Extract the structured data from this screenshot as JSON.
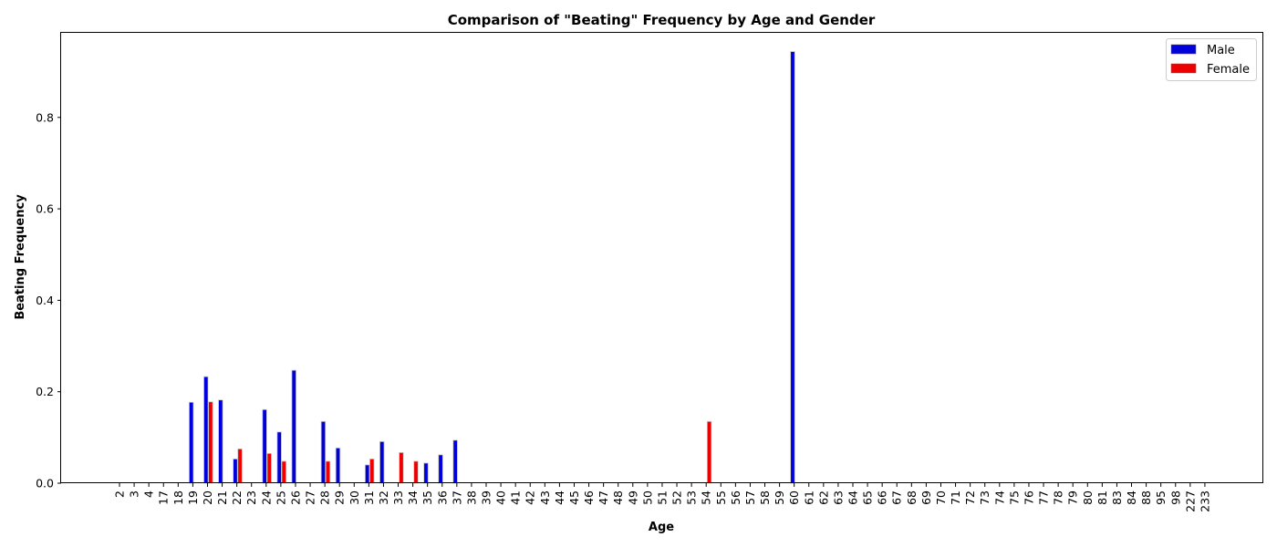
{
  "chart_data": {
    "type": "bar",
    "title": "Comparison of \"Beating\" Frequency by Age and Gender",
    "xlabel": "Age",
    "ylabel": "Beating Frequency",
    "ylim": [
      0,
      0.985
    ],
    "yticks": [
      "0.0",
      "0.2",
      "0.4",
      "0.6",
      "0.8"
    ],
    "grid": false,
    "legend_position": "top-right",
    "categories": [
      "2",
      "3",
      "4",
      "17",
      "18",
      "19",
      "20",
      "21",
      "22",
      "23",
      "24",
      "25",
      "26",
      "27",
      "28",
      "29",
      "30",
      "31",
      "32",
      "33",
      "34",
      "35",
      "36",
      "37",
      "38",
      "39",
      "40",
      "41",
      "42",
      "43",
      "44",
      "45",
      "46",
      "47",
      "48",
      "49",
      "50",
      "51",
      "52",
      "53",
      "54",
      "55",
      "56",
      "57",
      "58",
      "59",
      "60",
      "61",
      "62",
      "63",
      "64",
      "65",
      "66",
      "67",
      "68",
      "69",
      "70",
      "71",
      "72",
      "73",
      "74",
      "75",
      "76",
      "77",
      "78",
      "79",
      "80",
      "81",
      "83",
      "84",
      "88",
      "95",
      "98",
      "227",
      "233"
    ],
    "series": [
      {
        "name": "Male",
        "color": "#0000dd",
        "values": [
          0,
          0,
          0,
          0,
          0,
          0.177,
          0.233,
          0.182,
          0.053,
          0,
          0.161,
          0.112,
          0.247,
          0,
          0.135,
          0.077,
          0,
          0.04,
          0.091,
          0,
          0,
          0.044,
          0.062,
          0.094,
          0,
          0,
          0,
          0,
          0,
          0,
          0,
          0,
          0,
          0,
          0,
          0,
          0,
          0,
          0,
          0,
          0,
          0,
          0,
          0,
          0,
          0,
          0.944,
          0,
          0,
          0,
          0,
          0,
          0,
          0,
          0,
          0,
          0,
          0,
          0,
          0,
          0,
          0,
          0,
          0,
          0,
          0,
          0,
          0,
          0,
          0,
          0,
          0,
          0,
          0,
          0
        ]
      },
      {
        "name": "Female",
        "color": "#ee0000",
        "values": [
          0,
          0,
          0,
          0,
          0,
          0,
          0.178,
          0,
          0.075,
          0,
          0.065,
          0.048,
          0,
          0,
          0.048,
          0,
          0,
          0.053,
          0,
          0.067,
          0.048,
          0,
          0,
          0,
          0,
          0,
          0,
          0,
          0,
          0,
          0,
          0,
          0,
          0,
          0,
          0,
          0,
          0,
          0,
          0,
          0.135,
          0,
          0,
          0,
          0,
          0,
          0,
          0,
          0,
          0,
          0,
          0,
          0,
          0,
          0,
          0,
          0,
          0,
          0,
          0,
          0,
          0,
          0,
          0,
          0,
          0,
          0,
          0,
          0,
          0,
          0,
          0,
          0,
          0,
          0
        ]
      }
    ]
  }
}
